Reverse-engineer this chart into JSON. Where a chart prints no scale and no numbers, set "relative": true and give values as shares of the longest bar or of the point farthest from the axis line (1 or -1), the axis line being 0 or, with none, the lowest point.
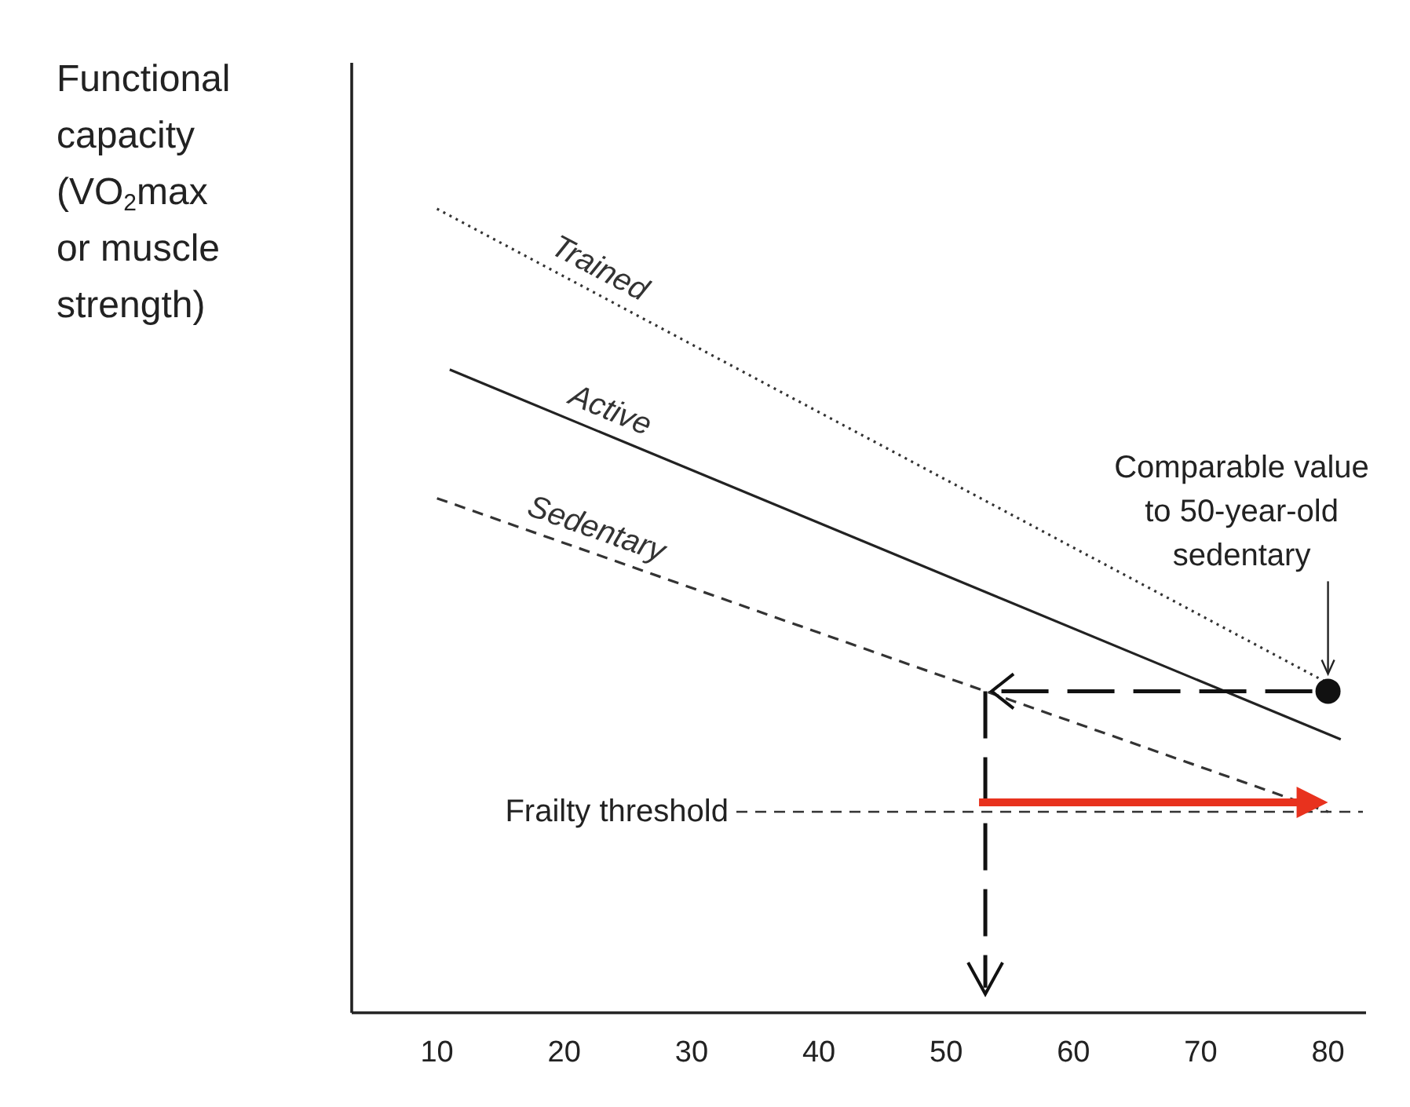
{
  "chart_data": {
    "type": "line",
    "relative": true,
    "ylabel": "Functional capacity (VO$_{2}$max or muscle strength)",
    "xlim": [
      3.3,
      82
    ],
    "xticks": [
      10,
      20,
      30,
      40,
      50,
      60,
      70,
      80
    ],
    "series": [
      {
        "name": "Trained",
        "color": "#333333",
        "line_style": "dotted",
        "x": [
          10,
          80
        ],
        "values": [
          1,
          0.41
        ]
      },
      {
        "name": "Active",
        "color": "#222222",
        "line_style": "solid",
        "x": [
          11,
          81
        ],
        "values": [
          0.8,
          0.34
        ]
      },
      {
        "name": "Sedentary",
        "color": "#333333",
        "line_style": "dashed",
        "x": [
          10,
          80
        ],
        "values": [
          0.64,
          0.25
        ]
      },
      {
        "type": "scatter",
        "color": "#111111",
        "marker": "circle",
        "x": [
          80
        ],
        "values": [
          0.4
        ]
      }
    ],
    "ref_lines": [
      {
        "axis": "y",
        "value": 0.25,
        "label": "Frailty threshold",
        "color": "#333333",
        "line_style": "dashed"
      }
    ],
    "annotations": [
      "Comparable value to 50-year-old sedentary"
    ],
    "grid": false,
    "legend": false
  }
}
